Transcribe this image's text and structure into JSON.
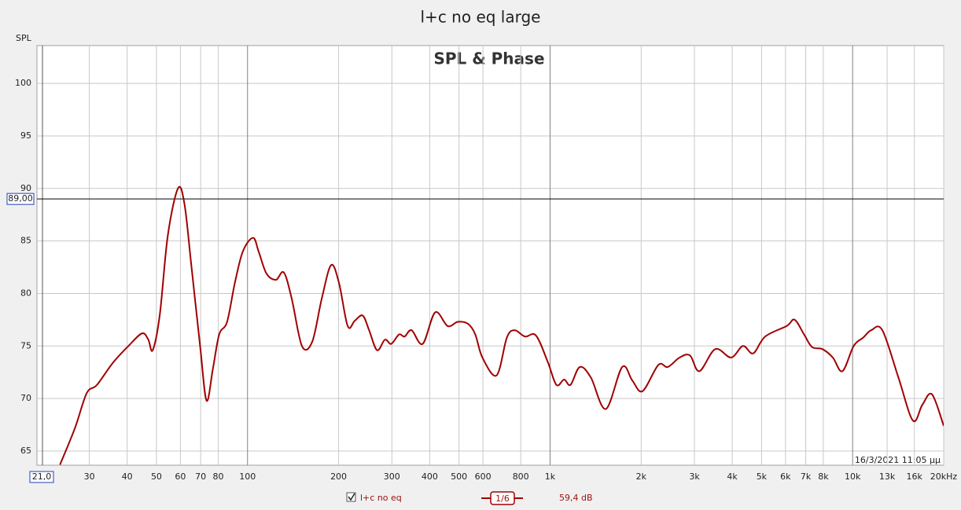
{
  "chart_data": {
    "type": "line",
    "title": "l+c no eq large",
    "subtitle": "SPL & Phase",
    "ylabel": "SPL",
    "timestamp": "16/3/2021 11:05 μμ",
    "log_x": true,
    "grid": true,
    "xlim": [
      21,
      20000
    ],
    "ylim": [
      63.65,
      103.6
    ],
    "xticks": [
      30,
      40,
      50,
      60,
      70,
      80,
      100,
      200,
      300,
      400,
      500,
      600,
      800,
      {
        "value": 1000,
        "label": "1k"
      },
      {
        "value": 2000,
        "label": "2k"
      },
      {
        "value": 3000,
        "label": "3k"
      },
      {
        "value": 4000,
        "label": "4k"
      },
      {
        "value": 5000,
        "label": "5k"
      },
      {
        "value": 6000,
        "label": "6k"
      },
      {
        "value": 7000,
        "label": "7k"
      },
      {
        "value": 8000,
        "label": "8k"
      },
      {
        "value": 10000,
        "label": "10k"
      },
      {
        "value": 13000,
        "label": "13k"
      },
      {
        "value": 16000,
        "label": "16k"
      },
      {
        "value": 20000,
        "label": "20kHz"
      }
    ],
    "yticks": [
      65,
      70,
      75,
      80,
      85,
      90,
      95,
      100
    ],
    "cursor_x": {
      "value": 21,
      "label": "21,0"
    },
    "cursor_y": {
      "value": 89,
      "label": "89,00"
    },
    "smoothing": "1/6",
    "level": "59,4 dB",
    "x": [
      24,
      26.9,
      29.4,
      31.8,
      35.9,
      40.4,
      44.8,
      47,
      48.6,
      51.3,
      54.5,
      58.9,
      61.9,
      65.3,
      69.7,
      73.2,
      76.8,
      80.6,
      85.6,
      90.8,
      96.5,
      104.3,
      108.8,
      115.5,
      124.1,
      131.8,
      140,
      151.3,
      163.6,
      175.9,
      188.9,
      200.6,
      214.3,
      226.2,
      240.3,
      252.3,
      268,
      284.5,
      298.5,
      316.8,
      330.4,
      348.6,
      379.3,
      417,
      458.6,
      495.8,
      536,
      566,
      597.6,
      665.5,
      719.7,
      763.9,
      826.1,
      898.1,
      982.1,
      1049,
      1113,
      1168,
      1254,
      1364,
      1528,
      1731,
      1871,
      2022,
      2280,
      2450,
      2680,
      2900,
      3116,
      3515,
      3966,
      4340,
      4692,
      5140,
      6052,
      6430,
      6910,
      7345,
      7949,
      8601,
      9251,
      10080,
      10840,
      11520,
      12540,
      14170,
      15820,
      17000,
      18290,
      20000
    ],
    "series": [
      {
        "name": "l+c no eq",
        "color": "#a00000",
        "values": [
          63.7,
          67.2,
          70.5,
          71.3,
          73.4,
          75.0,
          76.2,
          75.6,
          74.6,
          78.0,
          85.5,
          90.0,
          88.5,
          82.5,
          75.0,
          69.8,
          72.8,
          76.1,
          77.3,
          81.0,
          84.0,
          85.3,
          84.0,
          81.9,
          81.3,
          82.0,
          79.5,
          75.0,
          75.4,
          79.5,
          82.7,
          81.0,
          76.9,
          77.4,
          77.9,
          76.5,
          74.6,
          75.6,
          75.2,
          76.1,
          75.9,
          76.5,
          75.2,
          78.2,
          76.9,
          77.3,
          77.1,
          76.1,
          73.9,
          72.2,
          75.8,
          76.5,
          75.9,
          76.0,
          73.5,
          71.3,
          71.8,
          71.3,
          73.0,
          72.0,
          69.0,
          73.0,
          71.7,
          70.7,
          73.2,
          73.0,
          73.9,
          74.1,
          72.6,
          74.7,
          73.9,
          75.0,
          74.3,
          75.9,
          76.9,
          77.5,
          76.1,
          74.9,
          74.7,
          73.9,
          72.6,
          75.0,
          75.8,
          76.5,
          76.5,
          72.0,
          67.9,
          69.4,
          70.4,
          67.4
        ]
      }
    ]
  }
}
